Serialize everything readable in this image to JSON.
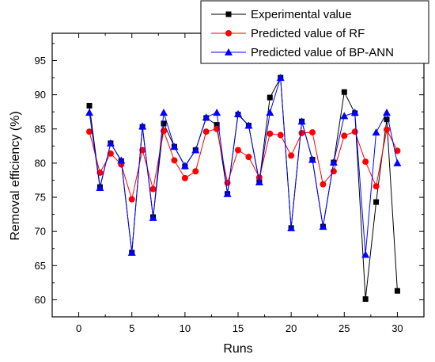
{
  "chart_data": {
    "type": "line",
    "xlabel": "Runs",
    "ylabel": "Removal efficiency (%)",
    "xlim": [
      -2.5,
      32.5
    ],
    "ylim": [
      57.5,
      99
    ],
    "xticks": [
      0,
      5,
      10,
      15,
      20,
      25,
      30
    ],
    "yticks": [
      60,
      65,
      70,
      75,
      80,
      85,
      90,
      95
    ],
    "legend_position": "top-right",
    "grid": false,
    "x": [
      1,
      2,
      3,
      4,
      5,
      6,
      7,
      8,
      9,
      10,
      11,
      12,
      13,
      14,
      15,
      16,
      17,
      18,
      19,
      20,
      21,
      22,
      23,
      24,
      25,
      26,
      27,
      28,
      29,
      30
    ],
    "series": [
      {
        "name": "Experimental value",
        "color": "#000000",
        "marker": "square",
        "values": [
          88.4,
          76.5,
          82.9,
          80.3,
          66.9,
          85.3,
          72.1,
          85.8,
          82.4,
          79.5,
          81.9,
          86.6,
          85.6,
          75.5,
          87.1,
          85.5,
          77.3,
          89.6,
          92.5,
          70.5,
          86.1,
          80.5,
          70.7,
          80.1,
          90.4,
          87.3,
          60.1,
          74.3,
          86.4,
          61.3
        ]
      },
      {
        "name": "Predicted value of RF",
        "color": "#ff0000",
        "marker": "circle",
        "values": [
          84.6,
          78.6,
          81.4,
          79.8,
          74.7,
          81.9,
          76.2,
          84.7,
          80.4,
          77.8,
          78.8,
          84.6,
          85.0,
          77.1,
          81.9,
          80.9,
          77.9,
          84.3,
          84.1,
          81.1,
          84.4,
          84.5,
          76.9,
          78.8,
          84.0,
          84.6,
          80.2,
          76.6,
          84.9,
          81.8
        ]
      },
      {
        "name": "Predicted value of BP-ANN",
        "color": "#0000ff",
        "marker": "triangle",
        "values": [
          87.4,
          76.4,
          82.9,
          80.4,
          66.9,
          85.4,
          72.0,
          87.4,
          82.4,
          79.6,
          81.9,
          86.7,
          87.4,
          75.5,
          87.2,
          85.5,
          77.2,
          87.4,
          92.5,
          70.5,
          86.1,
          80.5,
          70.7,
          80.1,
          86.9,
          87.4,
          66.6,
          84.5,
          87.4,
          80.0
        ]
      }
    ]
  }
}
